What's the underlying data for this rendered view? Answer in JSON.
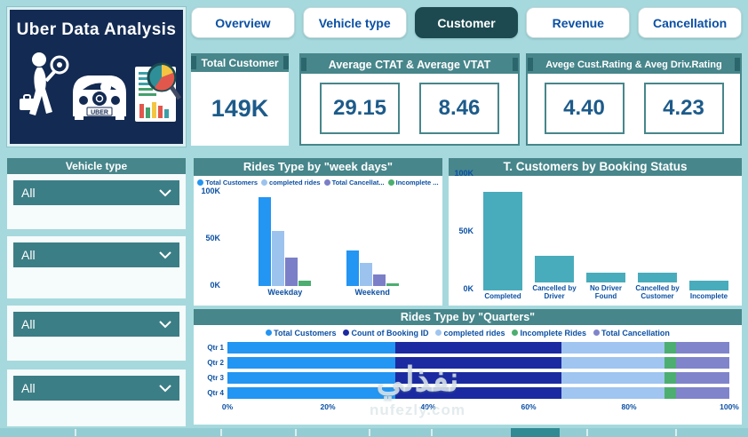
{
  "app": {
    "title": "Uber Data Analysis"
  },
  "tabs": [
    {
      "label": "Overview",
      "active": false
    },
    {
      "label": "Vehicle type",
      "active": false
    },
    {
      "label": "Customer",
      "active": true
    },
    {
      "label": "Revenue",
      "active": false
    },
    {
      "label": "Cancellation",
      "active": false
    }
  ],
  "kpis": {
    "total": {
      "header": "Total Customer",
      "value": "149K"
    },
    "ctat": {
      "header": "Average CTAT & Average VTAT",
      "values": [
        "29.15",
        "8.46"
      ]
    },
    "rating": {
      "header": "Avege Cust.Rating & Aveg Driv.Rating",
      "values": [
        "4.40",
        "4.23"
      ]
    }
  },
  "filters": {
    "header": "Vehicle type",
    "dropdowns": [
      "All",
      "All",
      "All",
      "All"
    ]
  },
  "chart_data": [
    {
      "type": "bar",
      "title": "Rides Type by \"week days\"",
      "categories": [
        "Weekday",
        "Weekend"
      ],
      "series": [
        {
          "name": "Total Customers",
          "color": "#2395F2",
          "values": [
            105000,
            42000
          ]
        },
        {
          "name": "completed rides",
          "color": "#9CC3EE",
          "values": [
            65000,
            27000
          ]
        },
        {
          "name": "Total Cancellat...",
          "color": "#7B7FC7",
          "values": [
            33000,
            13000
          ]
        },
        {
          "name": "Incomplete ...",
          "color": "#4CAE70",
          "values": [
            6000,
            2500
          ]
        }
      ],
      "ylim": [
        0,
        110000
      ],
      "yticks": [
        {
          "label": "0K",
          "value": 0
        },
        {
          "label": "50K",
          "value": 50000
        },
        {
          "label": "100K",
          "value": 100000
        }
      ],
      "legend_position": "top",
      "grid": false
    },
    {
      "type": "bar",
      "title": "T. Customers by Booking Status",
      "categories": [
        "Completed",
        "Cancelled by Driver",
        "No Driver Found",
        "Cancelled by Customer",
        "Incomplete"
      ],
      "values": [
        93000,
        27000,
        10000,
        10000,
        9000
      ],
      "bar_color": "#49ACBC",
      "ylim": [
        0,
        105000
      ],
      "yticks": [
        {
          "label": "0K",
          "value": 0
        },
        {
          "label": "50K",
          "value": 50000
        },
        {
          "label": "100K",
          "value": 100000
        }
      ],
      "legend_position": "none",
      "grid": false
    },
    {
      "type": "bar-stacked-100",
      "title": "Rides Type by \"Quarters\"",
      "categories": [
        "Qtr 1",
        "Qtr 2",
        "Qtr 3",
        "Qtr 4"
      ],
      "series": [
        {
          "name": "Total Customers",
          "color": "#2395F2",
          "values": [
            33.4,
            33.4,
            33.4,
            33.4
          ]
        },
        {
          "name": "Count of Booking ID",
          "color": "#1B2AA0",
          "values": [
            33.1,
            33.1,
            33.1,
            33.1
          ]
        },
        {
          "name": "completed rides",
          "color": "#9FC5F0",
          "values": [
            20.5,
            20.5,
            20.5,
            20.5
          ]
        },
        {
          "name": "Incomplete Rides",
          "color": "#4CAE70",
          "values": [
            2.3,
            2.3,
            2.3,
            2.3
          ]
        },
        {
          "name": "Total Cancellation",
          "color": "#8084CB",
          "values": [
            10.7,
            10.7,
            10.7,
            10.7
          ]
        }
      ],
      "xticks": [
        "0%",
        "20%",
        "40%",
        "60%",
        "80%",
        "100%"
      ],
      "xlim": [
        0,
        100
      ],
      "legend_position": "top",
      "grid": false
    }
  ],
  "watermark": {
    "line1": "نفذلي",
    "line2": "nufezly.com"
  },
  "colors": {
    "background": "#A6D9DD",
    "header_teal": "#47868B",
    "active_tab": "#1C4A50",
    "slicer_teal": "#3C7E86",
    "tab_text": "#0B50A4",
    "kpi_value": "#1D5B8A",
    "logo_bg": "#132A52"
  }
}
